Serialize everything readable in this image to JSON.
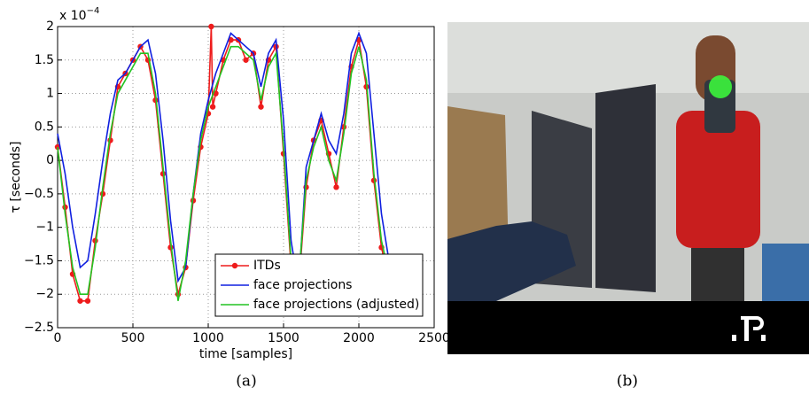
{
  "chart_data": {
    "type": "line",
    "xlabel": "time [samples]",
    "ylabel": "τ [seconds]",
    "y_multiplier": {
      "base": "x 10",
      "exponent": "−4"
    },
    "xlim": [
      0,
      2500
    ],
    "ylim": [
      -2.5,
      2
    ],
    "xticks": [
      0,
      500,
      1000,
      1500,
      2000,
      2500
    ],
    "yticks": [
      -2.5,
      -2,
      -1.5,
      -1,
      -0.5,
      0,
      0.5,
      1,
      1.5,
      2
    ],
    "grid": true,
    "legend": "lower right",
    "series": [
      {
        "name": "ITDs",
        "color": "#ee1c1c",
        "marker": "circle",
        "x": [
          0,
          50,
          100,
          150,
          200,
          250,
          300,
          350,
          400,
          450,
          500,
          550,
          600,
          650,
          700,
          750,
          800,
          850,
          900,
          950,
          1000,
          1020,
          1030,
          1050,
          1100,
          1150,
          1200,
          1250,
          1300,
          1350,
          1400,
          1450,
          1500,
          1550,
          1600,
          1650,
          1700,
          1750,
          1800,
          1850,
          1900,
          1950,
          2000,
          2050,
          2100,
          2150,
          2200
        ],
        "values": [
          0.2,
          -0.7,
          -1.7,
          -2.1,
          -2.1,
          -1.2,
          -0.5,
          0.3,
          1.1,
          1.3,
          1.5,
          1.7,
          1.5,
          0.9,
          -0.2,
          -1.3,
          -2.0,
          -1.6,
          -0.6,
          0.2,
          0.7,
          2.0,
          0.8,
          1.0,
          1.5,
          1.8,
          1.8,
          1.5,
          1.6,
          0.8,
          1.5,
          1.7,
          0.1,
          -1.6,
          -1.9,
          -0.4,
          0.3,
          0.6,
          0.1,
          -0.4,
          0.5,
          1.4,
          1.8,
          1.1,
          -0.3,
          -1.3,
          -1.8
        ]
      },
      {
        "name": "face projections",
        "color": "#1020e0",
        "marker": "none",
        "x": [
          0,
          50,
          100,
          150,
          200,
          250,
          300,
          350,
          400,
          450,
          500,
          550,
          600,
          650,
          700,
          750,
          800,
          850,
          900,
          950,
          1000,
          1050,
          1100,
          1150,
          1200,
          1250,
          1300,
          1350,
          1400,
          1450,
          1500,
          1550,
          1600,
          1650,
          1700,
          1750,
          1800,
          1850,
          1900,
          1950,
          2000,
          2050,
          2100,
          2150,
          2200
        ],
        "values": [
          0.4,
          -0.2,
          -1.0,
          -1.6,
          -1.5,
          -0.8,
          0.0,
          0.7,
          1.2,
          1.3,
          1.5,
          1.7,
          1.8,
          1.3,
          0.3,
          -0.9,
          -1.8,
          -1.6,
          -0.5,
          0.4,
          0.9,
          1.3,
          1.6,
          1.9,
          1.8,
          1.7,
          1.6,
          1.1,
          1.6,
          1.8,
          0.6,
          -1.2,
          -1.9,
          -0.1,
          0.3,
          0.7,
          0.3,
          0.1,
          0.7,
          1.6,
          1.9,
          1.6,
          0.4,
          -0.8,
          -1.5
        ]
      },
      {
        "name": "face projections (adjusted)",
        "color": "#22c422",
        "marker": "none",
        "x": [
          0,
          50,
          100,
          150,
          200,
          250,
          300,
          350,
          400,
          450,
          500,
          550,
          600,
          650,
          700,
          750,
          800,
          850,
          900,
          950,
          1000,
          1050,
          1100,
          1150,
          1200,
          1250,
          1300,
          1350,
          1400,
          1450,
          1500,
          1550,
          1600,
          1650,
          1700,
          1750,
          1800,
          1850,
          1900,
          1950,
          2000,
          2050,
          2100,
          2150,
          2200
        ],
        "values": [
          0.2,
          -0.8,
          -1.6,
          -2.0,
          -2.0,
          -1.3,
          -0.4,
          0.4,
          1.0,
          1.2,
          1.4,
          1.6,
          1.6,
          1.0,
          -0.1,
          -1.2,
          -2.1,
          -1.5,
          -0.5,
          0.3,
          0.8,
          1.1,
          1.4,
          1.7,
          1.7,
          1.6,
          1.5,
          0.9,
          1.4,
          1.6,
          0.2,
          -1.5,
          -1.8,
          -0.3,
          0.2,
          0.5,
          0.0,
          -0.3,
          0.4,
          1.3,
          1.7,
          1.2,
          -0.2,
          -1.2,
          -1.7
        ]
      }
    ]
  },
  "captions": [
    "(a)",
    "(b)"
  ]
}
